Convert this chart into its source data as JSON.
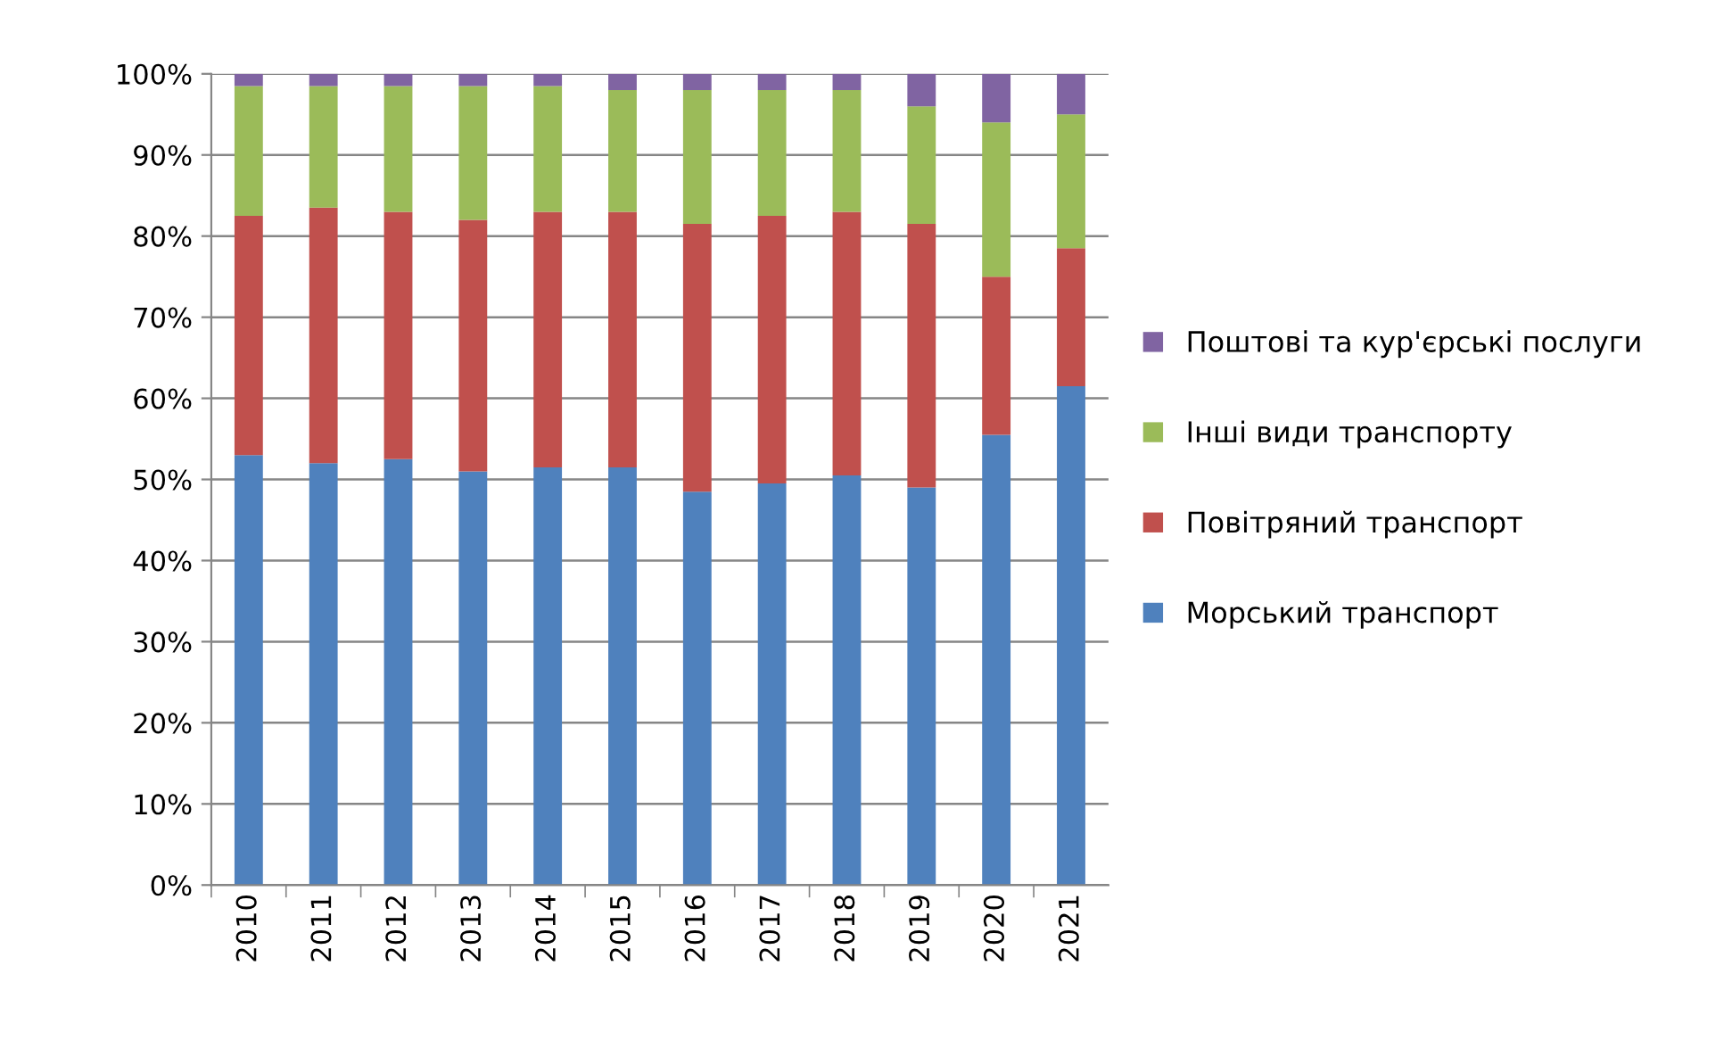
{
  "chart_data": {
    "type": "bar",
    "stacked": true,
    "categories": [
      "2010",
      "2011",
      "2012",
      "2013",
      "2014",
      "2015",
      "2016",
      "2017",
      "2018",
      "2019",
      "2020",
      "2021"
    ],
    "series": [
      {
        "name": "Морський транспорт",
        "color": "#4f81bd",
        "values": [
          53,
          52,
          52.5,
          51,
          51.5,
          51.5,
          48.5,
          49.5,
          50.5,
          49,
          55.5,
          61.5
        ]
      },
      {
        "name": "Повітряний транспорт",
        "color": "#c0504d",
        "values": [
          29.5,
          31.5,
          30.5,
          31,
          31.5,
          31.5,
          33,
          33,
          32.5,
          32.5,
          19.5,
          17
        ]
      },
      {
        "name": "Інші види транспорту",
        "color": "#9bbb59",
        "values": [
          16,
          15,
          15.5,
          16.5,
          15.5,
          15,
          16.5,
          15.5,
          15,
          14.5,
          19,
          16.5
        ]
      },
      {
        "name": "Поштові та кур'єрські послуги",
        "color": "#8064a2",
        "values": [
          1.5,
          1.5,
          1.5,
          1.5,
          1.5,
          2,
          2,
          2,
          2,
          4,
          6,
          5
        ]
      }
    ],
    "ylim": [
      0,
      100
    ],
    "yticks": [
      {
        "value": 0,
        "label": "0%"
      },
      {
        "value": 10,
        "label": "10%"
      },
      {
        "value": 20,
        "label": "20%"
      },
      {
        "value": 30,
        "label": "30%"
      },
      {
        "value": 40,
        "label": "40%"
      },
      {
        "value": 50,
        "label": "50%"
      },
      {
        "value": 60,
        "label": "60%"
      },
      {
        "value": 70,
        "label": "70%"
      },
      {
        "value": 80,
        "label": "80%"
      },
      {
        "value": 90,
        "label": "90%"
      },
      {
        "value": 100,
        "label": "100%"
      }
    ],
    "grid": "y",
    "legend": "right"
  }
}
